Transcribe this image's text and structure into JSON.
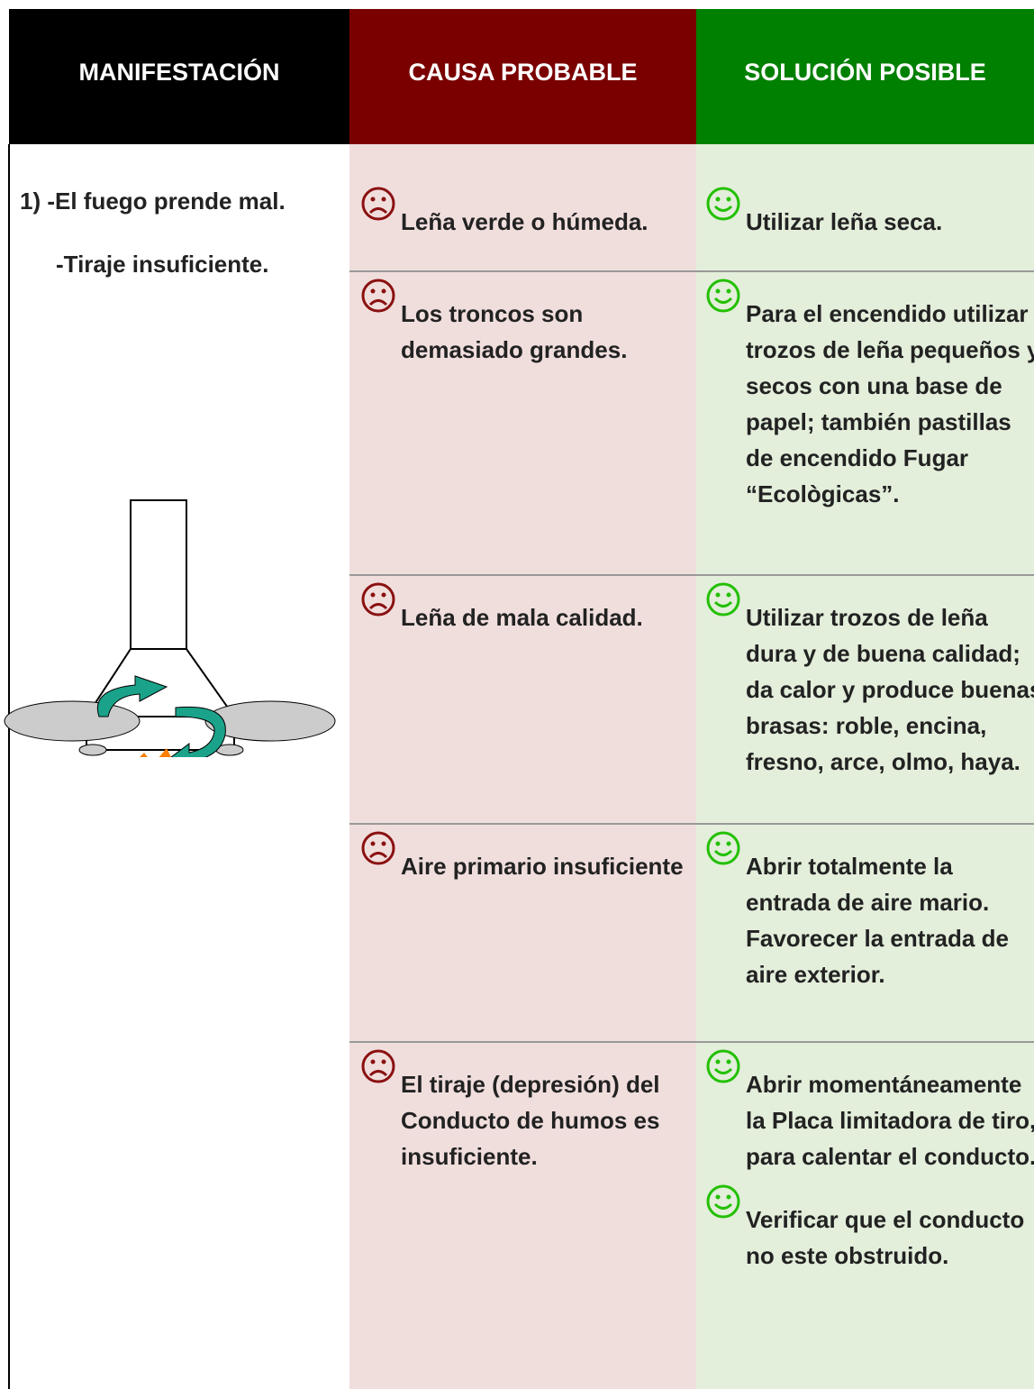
{
  "header": {
    "columns": [
      "MANIFESTACIÓN",
      "CAUSA PROBABLE",
      "SOLUCIÓN POSIBLE"
    ]
  },
  "manifestation": [
    "1) -El fuego prende mal.",
    "-Tiraje insuficiente."
  ],
  "rows": [
    {
      "cause": "Leña verde o húmeda.",
      "solutions": [
        "Utilizar leña seca."
      ]
    },
    {
      "cause": "Los troncos son demasiado grandes.",
      "solutions": [
        "Para el encendido utilizar trozos de leña pequeños y secos con una base de papel; también pastillas de encendido Fugar “Ecològicas”."
      ]
    },
    {
      "cause": "Leña de mala calidad.",
      "solutions": [
        "Utilizar trozos de leña dura y de buena calidad; da calor y produce buenas brasas: roble, encina, fresno, arce, olmo, haya."
      ]
    },
    {
      "cause": "Aire primario insuficiente",
      "solutions": [
        "Abrir totalmente la entrada de aire mario. Favorecer la entrada de aire exterior."
      ]
    },
    {
      "cause": "El tiraje (depresión) del Conducto de humos es insuficiente.",
      "solutions": [
        "Abrir momentáneamente la Placa limitadora de tiro, para calentar el conducto.",
        "Verificar que el conducto no este obstruido."
      ]
    }
  ]
}
